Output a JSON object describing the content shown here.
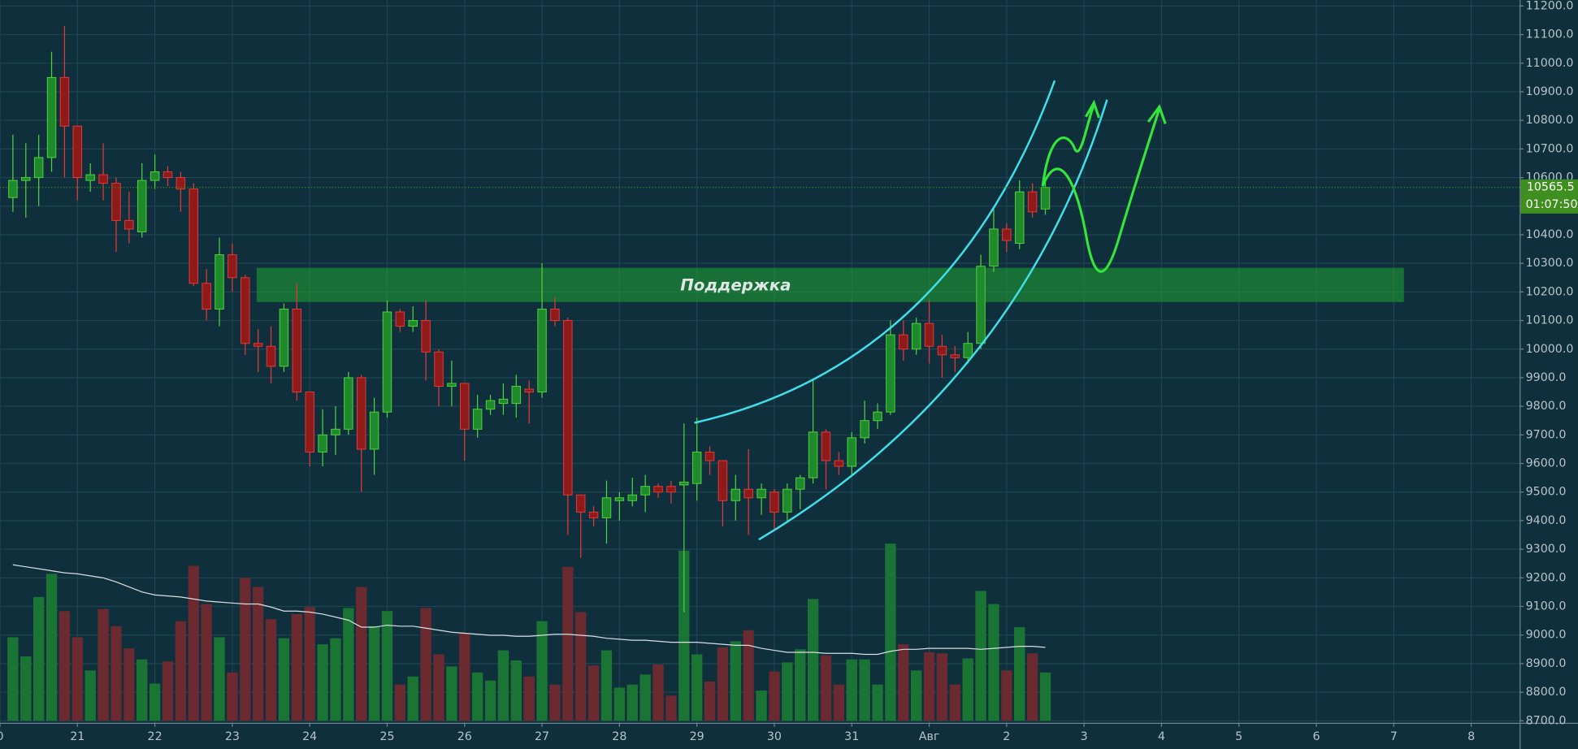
{
  "chart_data": {
    "type": "candlestick",
    "x": [
      4,
      8,
      12,
      16,
      20,
      24,
      28,
      32,
      36,
      40,
      44,
      48,
      52,
      56,
      60,
      64,
      68,
      72,
      76,
      80,
      84,
      88,
      92,
      96,
      100,
      104,
      108,
      112,
      116,
      120,
      124,
      128,
      132,
      136,
      140,
      144,
      148,
      152,
      156,
      160,
      164,
      168,
      172,
      176,
      180,
      184,
      188,
      192,
      196,
      200,
      204,
      208,
      212,
      216,
      220,
      224,
      228,
      232,
      236,
      240,
      244,
      248,
      252,
      256,
      260,
      264,
      268,
      272,
      276,
      280,
      284,
      288,
      292,
      296,
      300,
      304,
      308,
      312,
      316,
      320,
      324
    ],
    "open": [
      10530,
      10590,
      10600,
      10670,
      10950,
      10780,
      10590,
      10610,
      10580,
      10450,
      10410,
      10590,
      10620,
      10600,
      10560,
      10230,
      10140,
      10330,
      10250,
      10020,
      10010,
      9940,
      10140,
      9850,
      9640,
      9700,
      9720,
      9900,
      9650,
      9780,
      10130,
      10080,
      10100,
      9990,
      9870,
      9880,
      9720,
      9790,
      9810,
      9810,
      9860,
      9850,
      10140,
      10100,
      9490,
      9430,
      9410,
      9470,
      9470,
      9490,
      9520,
      9520,
      9525,
      9530,
      9640,
      9610,
      9470,
      9510,
      9480,
      9500,
      9430,
      9510,
      9550,
      9710,
      9610,
      9590,
      9690,
      9750,
      9780,
      10050,
      10000,
      10090,
      10010,
      9980,
      9970,
      10020,
      10290,
      10420,
      10370,
      10550,
      10490
    ],
    "high": [
      10750,
      10720,
      10750,
      11040,
      11130,
      10780,
      10650,
      10720,
      10600,
      10550,
      10650,
      10680,
      10640,
      10620,
      10580,
      10280,
      10390,
      10370,
      10260,
      10070,
      10080,
      10160,
      10230,
      9850,
      9790,
      9800,
      9920,
      9910,
      9830,
      10170,
      10140,
      10150,
      10170,
      10000,
      9960,
      9880,
      9840,
      9840,
      9880,
      9910,
      9890,
      10300,
      10180,
      10110,
      9490,
      9450,
      9540,
      9500,
      9550,
      9560,
      9530,
      9540,
      9740,
      9760,
      9660,
      9610,
      9560,
      9650,
      9530,
      9510,
      9530,
      9560,
      9890,
      9720,
      9640,
      9710,
      9820,
      9810,
      10100,
      10100,
      10110,
      10170,
      10050,
      10010,
      10060,
      10330,
      10500,
      10440,
      10590,
      10580,
      10590
    ],
    "low": [
      10480,
      10460,
      10500,
      10620,
      10600,
      10520,
      10550,
      10520,
      10340,
      10370,
      10390,
      10560,
      10570,
      10480,
      10220,
      10100,
      10080,
      10200,
      9980,
      9920,
      9880,
      9920,
      9820,
      9590,
      9590,
      9630,
      9700,
      9500,
      9560,
      9760,
      10060,
      10060,
      9890,
      9800,
      9800,
      9610,
      9690,
      9770,
      9770,
      9760,
      9740,
      9830,
      10080,
      9350,
      9270,
      9380,
      9320,
      9400,
      9450,
      9430,
      9480,
      9460,
      9080,
      9470,
      9560,
      9380,
      9400,
      9350,
      9420,
      9370,
      9400,
      9440,
      9530,
      9510,
      9560,
      9560,
      9670,
      9720,
      9770,
      9960,
      9980,
      9950,
      9900,
      9920,
      9950,
      10000,
      10270,
      10340,
      10350,
      10460,
      10470
    ],
    "close": [
      10590,
      10600,
      10670,
      10950,
      10780,
      10600,
      10610,
      10580,
      10450,
      10420,
      10590,
      10620,
      10600,
      10560,
      10230,
      10140,
      10330,
      10250,
      10020,
      10010,
      9940,
      10140,
      9850,
      9640,
      9700,
      9720,
      9900,
      9650,
      9780,
      10130,
      10080,
      10100,
      9990,
      9870,
      9880,
      9720,
      9790,
      9820,
      9825,
      9870,
      9850,
      10140,
      10100,
      9490,
      9430,
      9410,
      9480,
      9480,
      9490,
      9520,
      9500,
      9500,
      9535,
      9640,
      9610,
      9470,
      9510,
      9480,
      9510,
      9430,
      9510,
      9550,
      9710,
      9610,
      9590,
      9690,
      9750,
      9780,
      10050,
      10000,
      10090,
      10010,
      9980,
      9970,
      10020,
      10290,
      10420,
      10380,
      10550,
      10480,
      10565.5
    ],
    "volume": [
      83,
      64,
      123,
      146,
      109,
      83,
      50,
      111,
      94,
      72,
      61,
      37,
      59,
      99,
      154,
      116,
      83,
      48,
      142,
      133,
      101,
      82,
      106,
      113,
      76,
      82,
      112,
      133,
      94,
      109,
      36,
      44,
      112,
      66,
      54,
      87,
      48,
      40,
      70,
      60,
      44,
      99,
      36,
      153,
      108,
      55,
      70,
      33,
      36,
      46,
      56,
      25,
      169,
      66,
      39,
      73,
      79,
      90,
      30,
      49,
      58,
      71,
      121,
      65,
      36,
      61,
      61,
      36,
      176,
      76,
      50,
      68,
      67,
      36,
      62,
      129,
      116,
      50,
      93,
      67,
      48
    ],
    "volume_ma": [
      155,
      153,
      151,
      149,
      147,
      146,
      144,
      142,
      138,
      133,
      128,
      125,
      124,
      123,
      121,
      119,
      118,
      117,
      116,
      116,
      113,
      109,
      109,
      108,
      106,
      103,
      100,
      93,
      93,
      95,
      94,
      94,
      92,
      90,
      88,
      87,
      86,
      85,
      85,
      84,
      84,
      85,
      86,
      86,
      85,
      84,
      82,
      81,
      80,
      80,
      79,
      78,
      78,
      78,
      77,
      76,
      75,
      75,
      72,
      70,
      68,
      68,
      68,
      67,
      67,
      67,
      66,
      66,
      69,
      71,
      71,
      72,
      72,
      72,
      72,
      71,
      72,
      73,
      74,
      74,
      73
    ],
    "colors": {
      "up": "#1f8a2c",
      "up_border": "#4fd13c",
      "down": "#8e1a1a",
      "down_border": "#e23a3a",
      "volume_up": "#1a7535",
      "volume_down": "#6a2a30",
      "volume_ma": "#d8e0e4",
      "last_price": "#3e8f1f"
    },
    "xlim": [
      0,
      471
    ],
    "ylim": [
      8693,
      11221
    ],
    "xticks": [
      {
        "value": 0,
        "label": "0"
      },
      {
        "value": 24,
        "label": "21"
      },
      {
        "value": 48,
        "label": "22"
      },
      {
        "value": 72,
        "label": "23"
      },
      {
        "value": 96,
        "label": "24"
      },
      {
        "value": 120,
        "label": "25"
      },
      {
        "value": 144,
        "label": "26"
      },
      {
        "value": 168,
        "label": "27"
      },
      {
        "value": 192,
        "label": "28"
      },
      {
        "value": 216,
        "label": "29"
      },
      {
        "value": 240,
        "label": "30"
      },
      {
        "value": 264,
        "label": "31"
      },
      {
        "value": 288,
        "label": "Авг"
      },
      {
        "value": 312,
        "label": "2"
      },
      {
        "value": 336,
        "label": "3"
      },
      {
        "value": 360,
        "label": "4"
      },
      {
        "value": 384,
        "label": "5"
      },
      {
        "value": 408,
        "label": "6"
      },
      {
        "value": 432,
        "label": "7"
      },
      {
        "value": 456,
        "label": "8"
      }
    ],
    "yticks": [
      {
        "value": 8700,
        "label": "8700.0"
      },
      {
        "value": 8800,
        "label": "8800.0"
      },
      {
        "value": 8900,
        "label": "8900.0"
      },
      {
        "value": 9000,
        "label": "9000.0"
      },
      {
        "value": 9100,
        "label": "9100.0"
      },
      {
        "value": 9200,
        "label": "9200.0"
      },
      {
        "value": 9300,
        "label": "9300.0"
      },
      {
        "value": 9400,
        "label": "9400.0"
      },
      {
        "value": 9500,
        "label": "9500.0"
      },
      {
        "value": 9600,
        "label": "9600.0"
      },
      {
        "value": 9700,
        "label": "9700.0"
      },
      {
        "value": 9800,
        "label": "9800.0"
      },
      {
        "value": 9900,
        "label": "9900.0"
      },
      {
        "value": 10000,
        "label": "10000.0"
      },
      {
        "value": 10100,
        "label": "10100.0"
      },
      {
        "value": 10200,
        "label": "10200.0"
      },
      {
        "value": 10300,
        "label": "10300.0"
      },
      {
        "value": 10400,
        "label": "10400.0"
      },
      {
        "value": 10500,
        "label": "10500.0"
      },
      {
        "value": 10600,
        "label": "10600.0"
      },
      {
        "value": 10700,
        "label": "10700.0"
      },
      {
        "value": 10800,
        "label": "10800.0"
      },
      {
        "value": 10900,
        "label": "10900.0"
      },
      {
        "value": 11000,
        "label": "11000.0"
      },
      {
        "value": 11100,
        "label": "11100.0"
      },
      {
        "value": 11200,
        "label": "11200.0"
      }
    ],
    "grid": true,
    "last_price": 10565.5,
    "countdown": "01:07:50",
    "annotations": [
      "Поддержка"
    ]
  }
}
